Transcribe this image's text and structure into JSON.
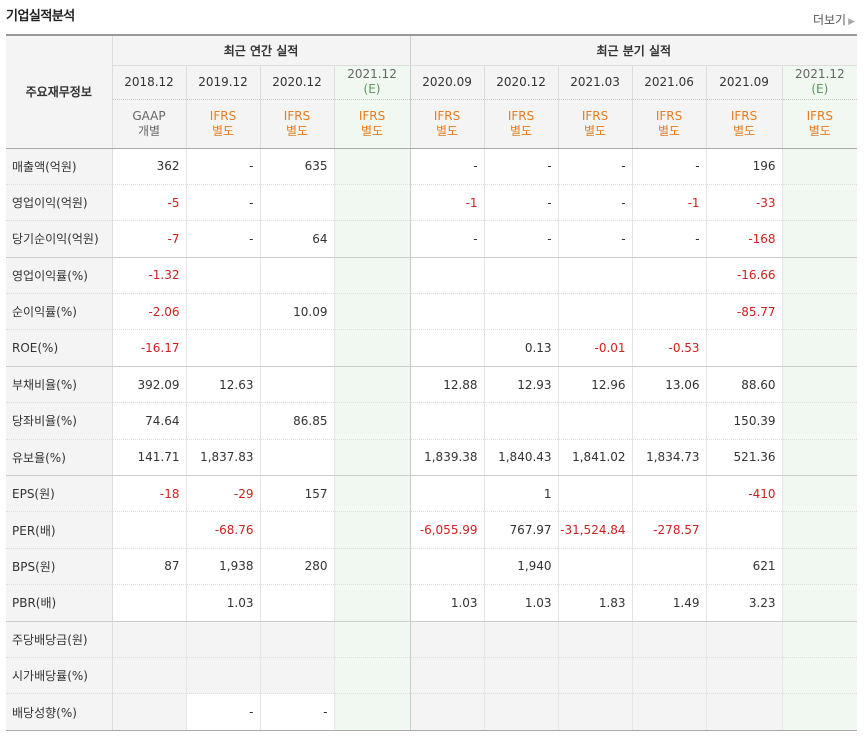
{
  "title": "기업실적분석",
  "more_label": "더보기",
  "header": {
    "row_label": "주요재무정보",
    "annual_group": "최근 연간 실적",
    "quarter_group": "최근 분기 실적",
    "periods": [
      {
        "date": "2018.12",
        "estimate": ""
      },
      {
        "date": "2019.12",
        "estimate": ""
      },
      {
        "date": "2020.12",
        "estimate": ""
      },
      {
        "date": "2021.12",
        "estimate": "(E)"
      },
      {
        "date": "2020.09",
        "estimate": ""
      },
      {
        "date": "2020.12",
        "estimate": ""
      },
      {
        "date": "2021.03",
        "estimate": ""
      },
      {
        "date": "2021.06",
        "estimate": ""
      },
      {
        "date": "2021.09",
        "estimate": ""
      },
      {
        "date": "2021.12",
        "estimate": "(E)"
      }
    ],
    "accounting": [
      {
        "std": "GAAP",
        "type": "개별"
      },
      {
        "std": "IFRS",
        "type": "별도"
      },
      {
        "std": "IFRS",
        "type": "별도"
      },
      {
        "std": "IFRS",
        "type": "별도"
      },
      {
        "std": "IFRS",
        "type": "별도"
      },
      {
        "std": "IFRS",
        "type": "별도"
      },
      {
        "std": "IFRS",
        "type": "별도"
      },
      {
        "std": "IFRS",
        "type": "별도"
      },
      {
        "std": "IFRS",
        "type": "별도"
      },
      {
        "std": "IFRS",
        "type": "별도"
      }
    ]
  },
  "rows": [
    {
      "label": "매출액(억원)",
      "values": [
        "362",
        "-",
        "635",
        "",
        "-",
        "-",
        "-",
        "-",
        "196",
        ""
      ]
    },
    {
      "label": "영업이익(억원)",
      "values": [
        "-5",
        "-",
        "",
        "",
        "-1",
        "-",
        "-",
        "-1",
        "-33",
        ""
      ]
    },
    {
      "label": "당기순이익(억원)",
      "values": [
        "-7",
        "-",
        "64",
        "",
        "-",
        "-",
        "-",
        "-",
        "-168",
        ""
      ]
    },
    {
      "label": "영업이익률(%)",
      "values": [
        "-1.32",
        "",
        "",
        "",
        "",
        "",
        "",
        "",
        "-16.66",
        ""
      ]
    },
    {
      "label": "순이익률(%)",
      "values": [
        "-2.06",
        "",
        "10.09",
        "",
        "",
        "",
        "",
        "",
        "-85.77",
        ""
      ]
    },
    {
      "label": "ROE(%)",
      "values": [
        "-16.17",
        "",
        "",
        "",
        "",
        "0.13",
        "-0.01",
        "-0.53",
        "",
        ""
      ]
    },
    {
      "label": "부채비율(%)",
      "values": [
        "392.09",
        "12.63",
        "",
        "",
        "12.88",
        "12.93",
        "12.96",
        "13.06",
        "88.60",
        ""
      ]
    },
    {
      "label": "당좌비율(%)",
      "values": [
        "74.64",
        "",
        "86.85",
        "",
        "",
        "",
        "",
        "",
        "150.39",
        ""
      ]
    },
    {
      "label": "유보율(%)",
      "values": [
        "141.71",
        "1,837.83",
        "",
        "",
        "1,839.38",
        "1,840.43",
        "1,841.02",
        "1,834.73",
        "521.36",
        ""
      ]
    },
    {
      "label": "EPS(원)",
      "values": [
        "-18",
        "-29",
        "157",
        "",
        "",
        "1",
        "",
        "",
        "-410",
        ""
      ]
    },
    {
      "label": "PER(배)",
      "values": [
        "",
        "-68.76",
        "",
        "",
        "-6,055.99",
        "767.97",
        "-31,524.84",
        "-278.57",
        "",
        ""
      ]
    },
    {
      "label": "BPS(원)",
      "values": [
        "87",
        "1,938",
        "280",
        "",
        "",
        "1,940",
        "",
        "",
        "621",
        ""
      ]
    },
    {
      "label": "PBR(배)",
      "values": [
        "",
        "1.03",
        "",
        "",
        "1.03",
        "1.03",
        "1.83",
        "1.49",
        "3.23",
        ""
      ]
    },
    {
      "label": "주당배당금(원)",
      "values": [
        "",
        "",
        "",
        "",
        "",
        "",
        "",
        "",
        "",
        ""
      ]
    },
    {
      "label": "시가배당률(%)",
      "values": [
        "",
        "",
        "",
        "",
        "",
        "",
        "",
        "",
        "",
        ""
      ]
    },
    {
      "label": "배당성향(%)",
      "values": [
        "",
        "-",
        "-",
        "",
        "",
        "",
        "",
        "",
        "",
        ""
      ]
    }
  ],
  "colors": {
    "negative": "#d12020",
    "ifrs": "#e87c1e",
    "estimate": "#5a9a5a",
    "header_bg": "#f4f4f4",
    "estimate_bg": "#f1f7f1"
  }
}
